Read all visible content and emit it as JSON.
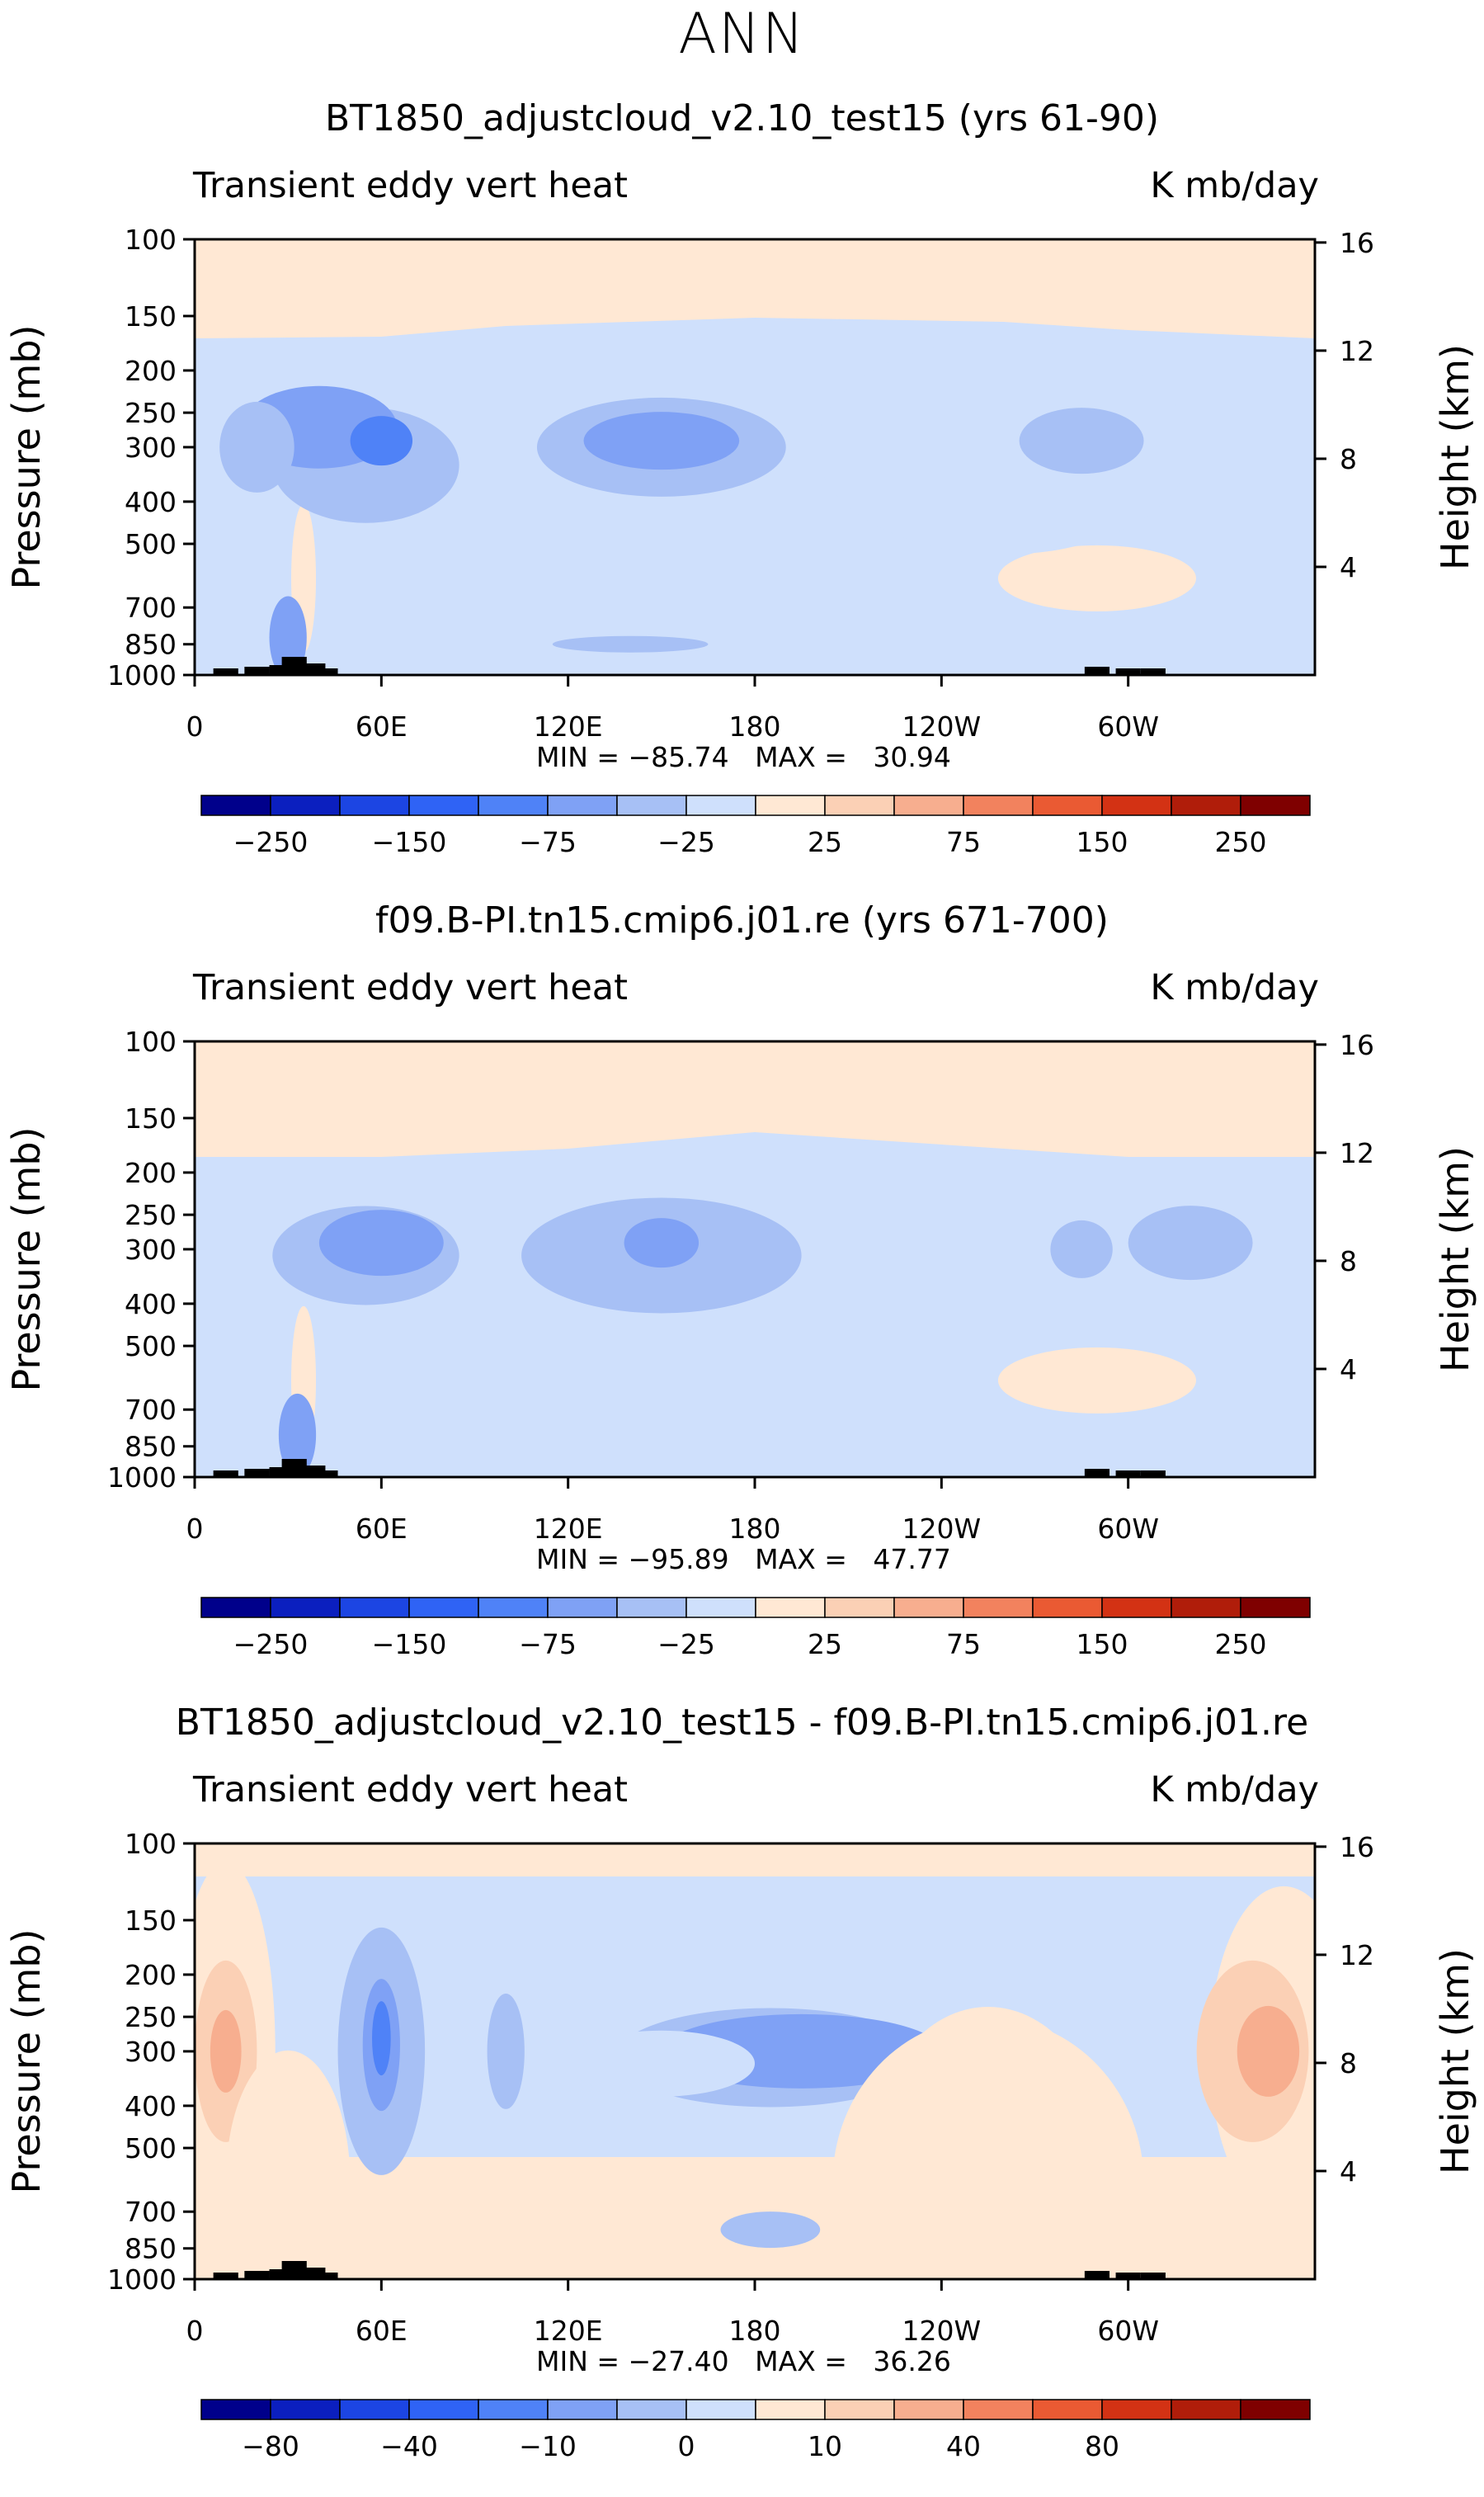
{
  "title": "ANN",
  "colors": [
    "#00008b",
    "#0b1fbf",
    "#1c45e3",
    "#2f63f5",
    "#4f82f7",
    "#7fa1f5",
    "#a7c0f5",
    "#cfe0fc",
    "#ffe8d4",
    "#fbd0b5",
    "#f7ae8f",
    "#f2825e",
    "#ea5a33",
    "#d33214",
    "#b01d0a",
    "#7f0000"
  ],
  "chart_data": [
    {
      "type": "heatmap",
      "title": "BT1850_adjustcloud_v2.10_test15 (yrs 61-90)",
      "left_string": "Transient eddy vert heat",
      "right_string": "K mb/day",
      "ylabel": "Pressure (mb)",
      "right_ylabel": "Height (km)",
      "x_ticks": [
        "0",
        "60E",
        "120E",
        "180",
        "120W",
        "60W"
      ],
      "y_ticks": [
        "100",
        "150",
        "200",
        "250",
        "300",
        "400",
        "500",
        "700",
        "850",
        "1000"
      ],
      "height_ticks": [
        "16",
        "12",
        "8",
        "4"
      ],
      "minmax_text": "MIN = −85.74   MAX =   30.94",
      "min": -85.74,
      "max": 30.94,
      "colorbar_levels": [
        -250,
        -200,
        -150,
        -100,
        -75,
        -50,
        -25,
        0,
        25,
        50,
        75,
        100,
        150,
        200,
        250
      ],
      "colorbar_labels": [
        "−250",
        "−150",
        "−75",
        "−25",
        "25",
        "75",
        "150",
        "250"
      ]
    },
    {
      "type": "heatmap",
      "title": "f09.B-PI.tn15.cmip6.j01.re (yrs 671-700)",
      "left_string": "Transient eddy vert heat",
      "right_string": "K mb/day",
      "ylabel": "Pressure (mb)",
      "right_ylabel": "Height (km)",
      "x_ticks": [
        "0",
        "60E",
        "120E",
        "180",
        "120W",
        "60W"
      ],
      "y_ticks": [
        "100",
        "150",
        "200",
        "250",
        "300",
        "400",
        "500",
        "700",
        "850",
        "1000"
      ],
      "height_ticks": [
        "16",
        "12",
        "8",
        "4"
      ],
      "minmax_text": "MIN = −95.89   MAX =   47.77",
      "min": -95.89,
      "max": 47.77,
      "colorbar_levels": [
        -250,
        -200,
        -150,
        -100,
        -75,
        -50,
        -25,
        0,
        25,
        50,
        75,
        100,
        150,
        200,
        250
      ],
      "colorbar_labels": [
        "−250",
        "−150",
        "−75",
        "−25",
        "25",
        "75",
        "150",
        "250"
      ]
    },
    {
      "type": "heatmap",
      "title": "BT1850_adjustcloud_v2.10_test15 - f09.B-PI.tn15.cmip6.j01.re",
      "left_string": "Transient eddy vert heat",
      "right_string": "K mb/day",
      "ylabel": "Pressure (mb)",
      "right_ylabel": "Height (km)",
      "x_ticks": [
        "0",
        "60E",
        "120E",
        "180",
        "120W",
        "60W"
      ],
      "y_ticks": [
        "100",
        "150",
        "200",
        "250",
        "300",
        "400",
        "500",
        "700",
        "850",
        "1000"
      ],
      "height_ticks": [
        "16",
        "12",
        "8",
        "4"
      ],
      "minmax_text": "MIN = −27.40   MAX =   36.26",
      "min": -27.4,
      "max": 36.26,
      "colorbar_levels": [
        -80,
        -60,
        -40,
        -20,
        -10,
        -5,
        0,
        5,
        10,
        20,
        40,
        60,
        80,
        100,
        120
      ],
      "colorbar_labels": [
        "−80",
        "−40",
        "−10",
        "0",
        "10",
        "40",
        "80"
      ]
    }
  ]
}
